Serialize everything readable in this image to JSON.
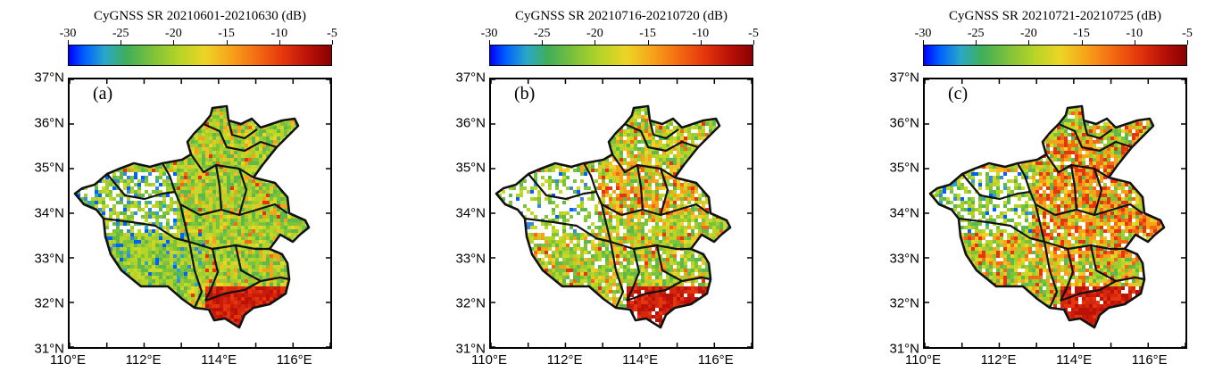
{
  "colorbar": {
    "ticks": [
      "-30",
      "-25",
      "-20",
      "-15",
      "-10",
      "-5"
    ],
    "colors": [
      "#0000ff",
      "#2aa8c8",
      "#3fae5a",
      "#b6d426",
      "#ecd526",
      "#f7a21a",
      "#e4350c",
      "#8a0000"
    ]
  },
  "axes": {
    "y_labels": [
      "37°N",
      "36°N",
      "35°N",
      "34°N",
      "33°N",
      "32°N",
      "31°N"
    ],
    "x_labels": [
      "110°E",
      "112°E",
      "114°E",
      "116°E"
    ]
  },
  "panels": [
    {
      "title": "CyGNSS SR 20210601-20210630 (dB)",
      "letter": "(a)",
      "palette": "a"
    },
    {
      "title": "CyGNSS SR 20210716-20210720 (dB)",
      "letter": "(b)",
      "palette": "b"
    },
    {
      "title": "CyGNSS SR 20210721-20210725 (dB)",
      "letter": "(c)",
      "palette": "c"
    }
  ]
}
